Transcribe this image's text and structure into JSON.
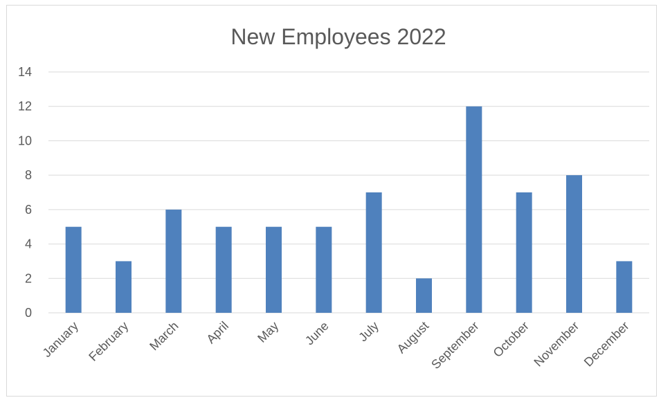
{
  "chart_data": {
    "type": "bar",
    "title": "New Employees 2022",
    "xlabel": "",
    "ylabel": "",
    "categories": [
      "January",
      "February",
      "March",
      "April",
      "May",
      "June",
      "July",
      "August",
      "September",
      "October",
      "November",
      "December"
    ],
    "values": [
      5,
      3,
      6,
      5,
      5,
      5,
      7,
      2,
      12,
      7,
      8,
      3
    ],
    "ylim": [
      0,
      14
    ],
    "yticks": [
      "0",
      "2",
      "4",
      "6",
      "8",
      "10",
      "12",
      "14"
    ],
    "grid": true,
    "legend": "none",
    "colors": {
      "bar": "#4f81bd",
      "grid": "#d9d9d9",
      "text": "#595959"
    }
  }
}
